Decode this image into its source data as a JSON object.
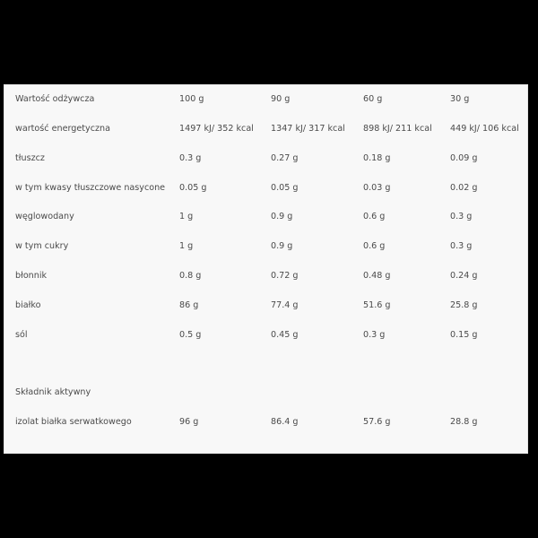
{
  "table": {
    "header": [
      "Wartość odżywcza",
      "100 g",
      "90 g",
      "60 g",
      "30 g"
    ],
    "rows": [
      [
        "wartość energetyczna",
        "1497 kJ/ 352 kcal",
        "1347 kJ/ 317 kcal",
        "898 kJ/ 211 kcal",
        "449 kJ/ 106 kcal"
      ],
      [
        "tłuszcz",
        "0.3 g",
        "0.27 g",
        "0.18 g",
        "0.09 g"
      ],
      [
        "w tym kwasy tłuszczowe nasycone",
        "0.05 g",
        "0.05 g",
        "0.03 g",
        "0.02 g"
      ],
      [
        "węglowodany",
        "1 g",
        "0.9 g",
        "0.6 g",
        "0.3 g"
      ],
      [
        "w tym cukry",
        "1 g",
        "0.9 g",
        "0.6 g",
        "0.3 g"
      ],
      [
        "błonnik",
        "0.8 g",
        "0.72 g",
        "0.48 g",
        "0.24 g"
      ],
      [
        "białko",
        "86 g",
        "77.4 g",
        "51.6 g",
        "25.8 g"
      ],
      [
        "sól",
        "0.5 g",
        "0.45 g",
        "0.3 g",
        "0.15 g"
      ]
    ],
    "active_header": "Składnik aktywny",
    "active_rows": [
      [
        "izolat białka serwatkowego",
        "96 g",
        "86.4 g",
        "57.6 g",
        "28.8 g"
      ]
    ]
  }
}
